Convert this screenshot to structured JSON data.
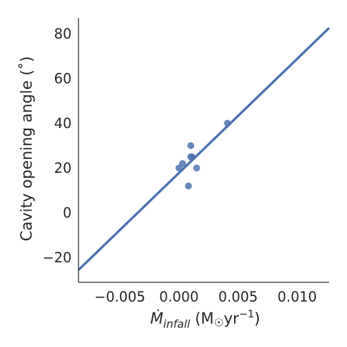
{
  "chart_data": {
    "type": "scatter",
    "title": "",
    "xlabel": {
      "main": "Ṁ",
      "subscript": "infall",
      "unit_prefix": " (M",
      "unit_sun": "☉",
      "unit_mid": "yr",
      "unit_exp": "−1",
      "unit_suffix": ")"
    },
    "ylabel": "Cavity opening angle (˚)",
    "xlim": [
      -0.0085,
      0.0127
    ],
    "ylim": [
      -31,
      87
    ],
    "x_ticks": [
      -0.005,
      0.0,
      0.005,
      0.01
    ],
    "x_tick_labels": [
      "−0.005",
      "0.000",
      "0.005",
      "0.010"
    ],
    "y_ticks": [
      -20,
      0,
      20,
      40,
      60,
      80
    ],
    "y_tick_labels": [
      "−20",
      "0",
      "20",
      "40",
      "60",
      "80"
    ],
    "points": [
      {
        "x": 0.0,
        "y": 20
      },
      {
        "x": 0.0003,
        "y": 22
      },
      {
        "x": 0.0008,
        "y": 12
      },
      {
        "x": 0.001,
        "y": 25
      },
      {
        "x": 0.0011,
        "y": 25
      },
      {
        "x": 0.001,
        "y": 30
      },
      {
        "x": 0.0015,
        "y": 20
      },
      {
        "x": 0.0041,
        "y": 40
      }
    ],
    "fit_line": {
      "x": [
        -0.0085,
        0.0127
      ],
      "y": [
        -25.5,
        82.5
      ]
    },
    "grid": false,
    "legend": "none",
    "colors": {
      "points": "#4c72b0",
      "line": "#4c72b0",
      "axis": "#262626"
    }
  }
}
